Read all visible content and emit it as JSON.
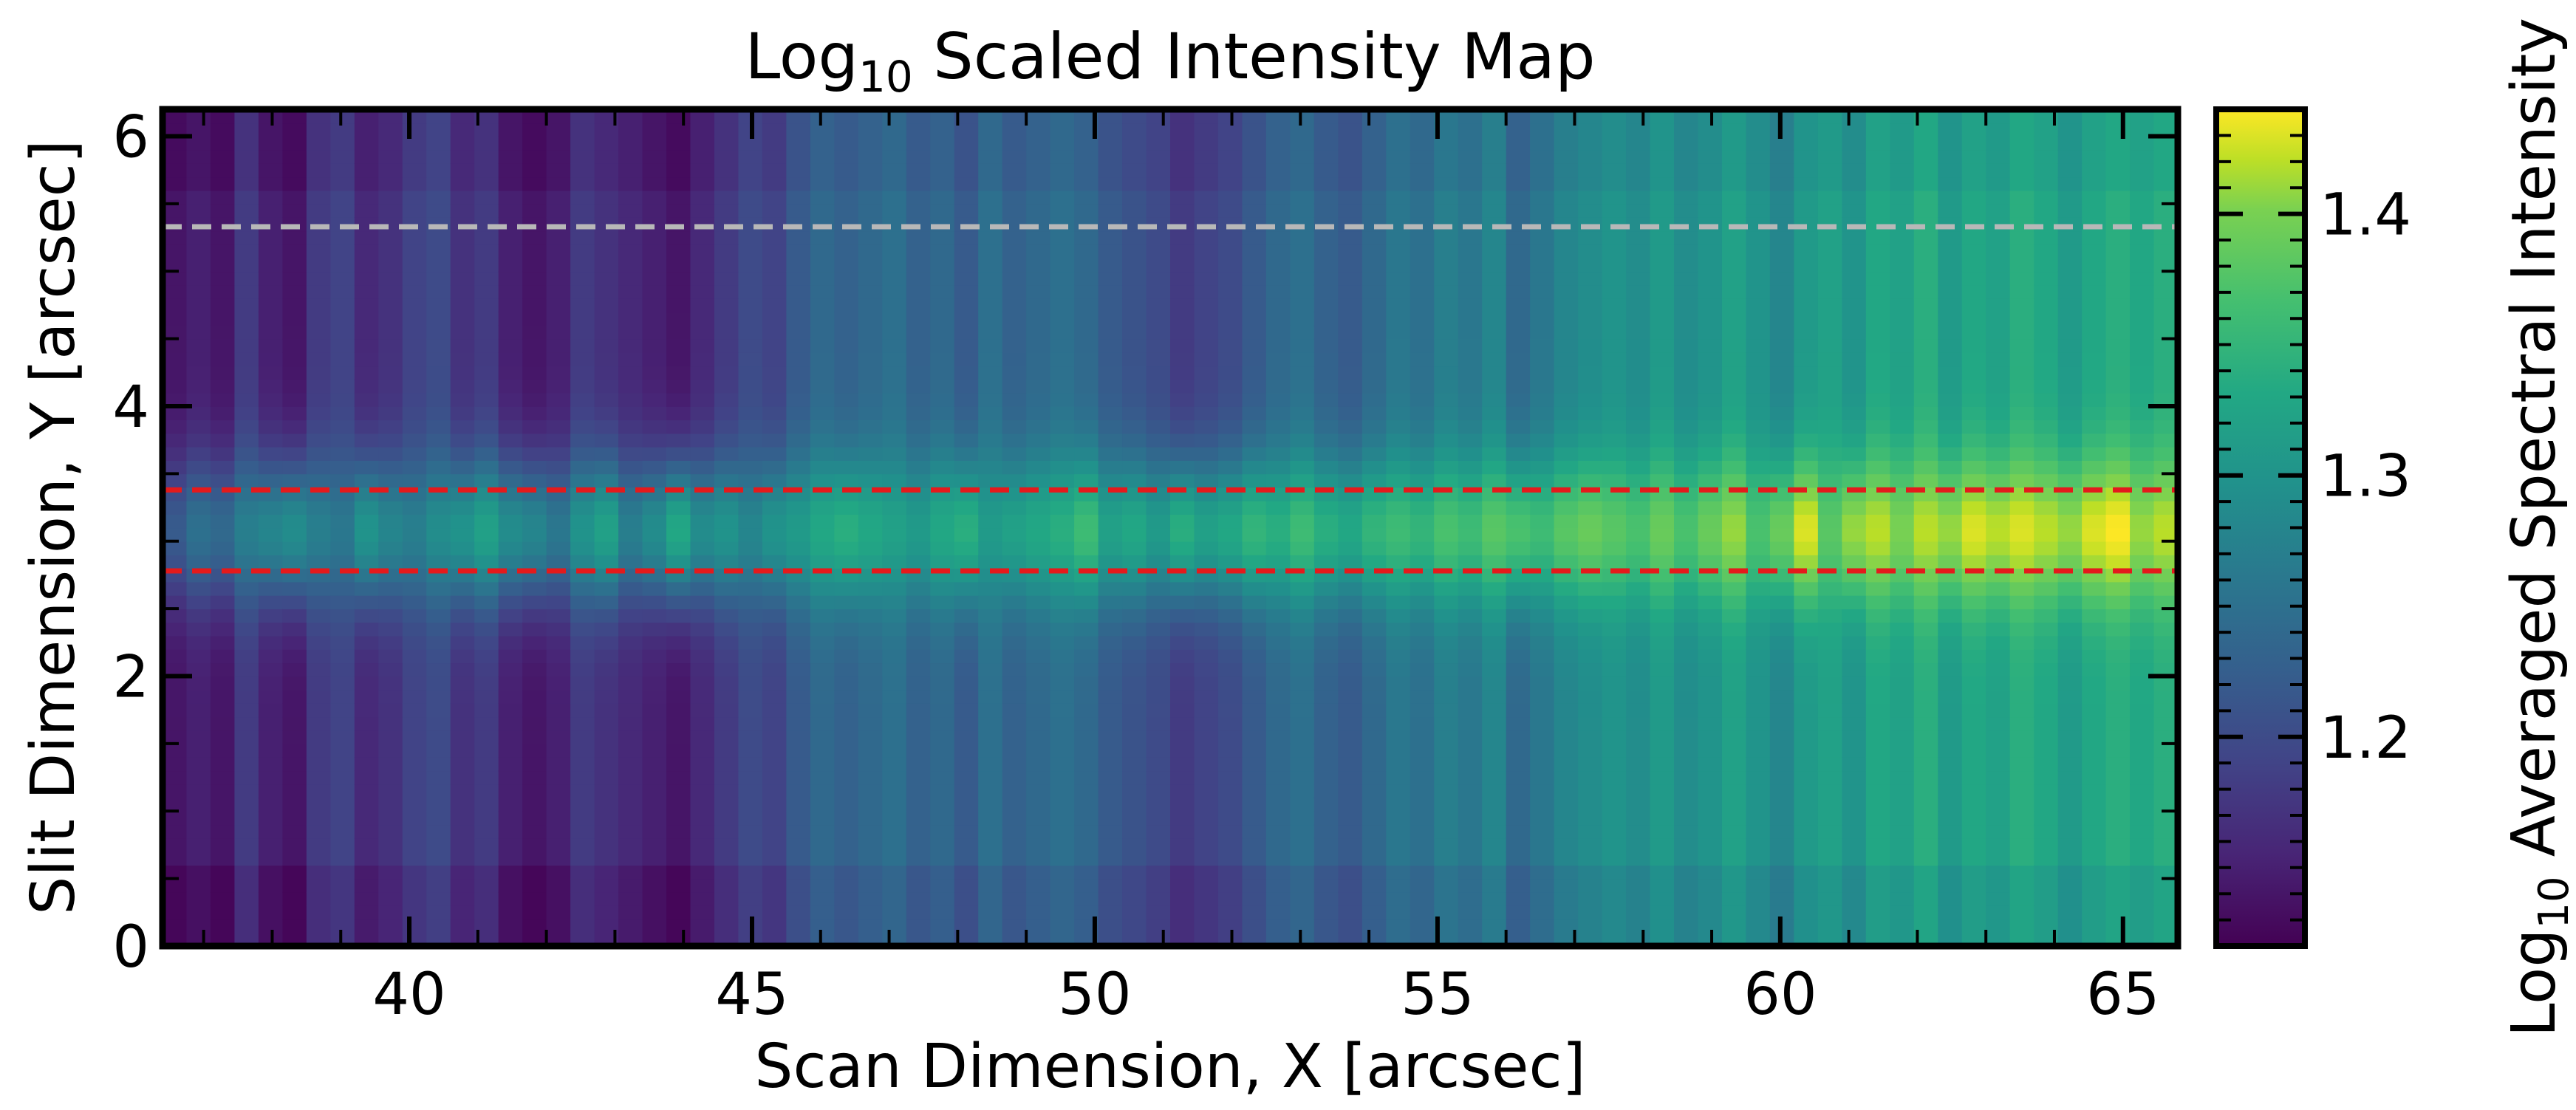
{
  "chart_data": {
    "type": "heatmap",
    "title_main": "Log",
    "title_sub": "10",
    "title_rest": " Scaled Intensity Map",
    "xlabel": "Scan Dimension, X [arcsec]",
    "ylabel": "Slit Dimension, Y [arcsec]",
    "colorbar_label_main": "Log",
    "colorbar_label_sub": "10",
    "colorbar_label_rest": " Averaged Spectral Intensity",
    "xlim": [
      36.4,
      65.8
    ],
    "ylim": [
      0,
      6.2
    ],
    "x_ticks": [
      40,
      45,
      50,
      55,
      60,
      65
    ],
    "x_tick_labels": [
      "40",
      "45",
      "50",
      "55",
      "60",
      "65"
    ],
    "y_ticks": [
      0,
      2,
      4,
      6
    ],
    "y_tick_labels": [
      "0",
      "2",
      "4",
      "6"
    ],
    "colorbar_range": [
      1.12,
      1.44
    ],
    "colorbar_ticks": [
      1.2,
      1.3,
      1.4
    ],
    "colorbar_tick_labels": [
      "1.2",
      "1.3",
      "1.4"
    ],
    "colormap": "viridis",
    "lines": [
      {
        "y": 5.33,
        "color": "#b8b8b8",
        "style": "dashed"
      },
      {
        "y": 3.38,
        "color": "#e41a1c",
        "style": "dashed"
      },
      {
        "y": 2.78,
        "color": "#e41a1c",
        "style": "dashed"
      }
    ],
    "columns": {
      "x_start": 36.4,
      "x_end": 65.8,
      "count": 84,
      "baseline": [
        1.14,
        1.15,
        1.14,
        1.18,
        1.15,
        1.14,
        1.18,
        1.19,
        1.16,
        1.17,
        1.19,
        1.2,
        1.17,
        1.18,
        1.15,
        1.14,
        1.15,
        1.18,
        1.17,
        1.16,
        1.15,
        1.14,
        1.16,
        1.18,
        1.2,
        1.19,
        1.22,
        1.24,
        1.23,
        1.24,
        1.25,
        1.23,
        1.24,
        1.22,
        1.25,
        1.23,
        1.24,
        1.25,
        1.24,
        1.22,
        1.21,
        1.2,
        1.18,
        1.19,
        1.2,
        1.22,
        1.24,
        1.25,
        1.23,
        1.22,
        1.24,
        1.26,
        1.25,
        1.27,
        1.26,
        1.28,
        1.24,
        1.26,
        1.28,
        1.29,
        1.3,
        1.29,
        1.31,
        1.29,
        1.3,
        1.32,
        1.3,
        1.28,
        1.31,
        1.32,
        1.3,
        1.33,
        1.32,
        1.34,
        1.31,
        1.33,
        1.32,
        1.34,
        1.33,
        1.31,
        1.33,
        1.34,
        1.33,
        1.34
      ],
      "band_peak": [
        1.22,
        1.25,
        1.24,
        1.27,
        1.28,
        1.29,
        1.27,
        1.26,
        1.3,
        1.28,
        1.27,
        1.29,
        1.3,
        1.32,
        1.29,
        1.28,
        1.26,
        1.3,
        1.32,
        1.27,
        1.29,
        1.33,
        1.29,
        1.3,
        1.28,
        1.3,
        1.31,
        1.33,
        1.34,
        1.33,
        1.32,
        1.31,
        1.33,
        1.34,
        1.31,
        1.32,
        1.33,
        1.34,
        1.36,
        1.32,
        1.33,
        1.31,
        1.34,
        1.32,
        1.33,
        1.35,
        1.34,
        1.36,
        1.34,
        1.33,
        1.35,
        1.36,
        1.35,
        1.37,
        1.36,
        1.38,
        1.37,
        1.36,
        1.38,
        1.39,
        1.38,
        1.37,
        1.39,
        1.37,
        1.39,
        1.41,
        1.37,
        1.39,
        1.43,
        1.38,
        1.41,
        1.42,
        1.4,
        1.42,
        1.41,
        1.43,
        1.42,
        1.43,
        1.42,
        1.41,
        1.43,
        1.44,
        1.41,
        1.42
      ]
    }
  }
}
